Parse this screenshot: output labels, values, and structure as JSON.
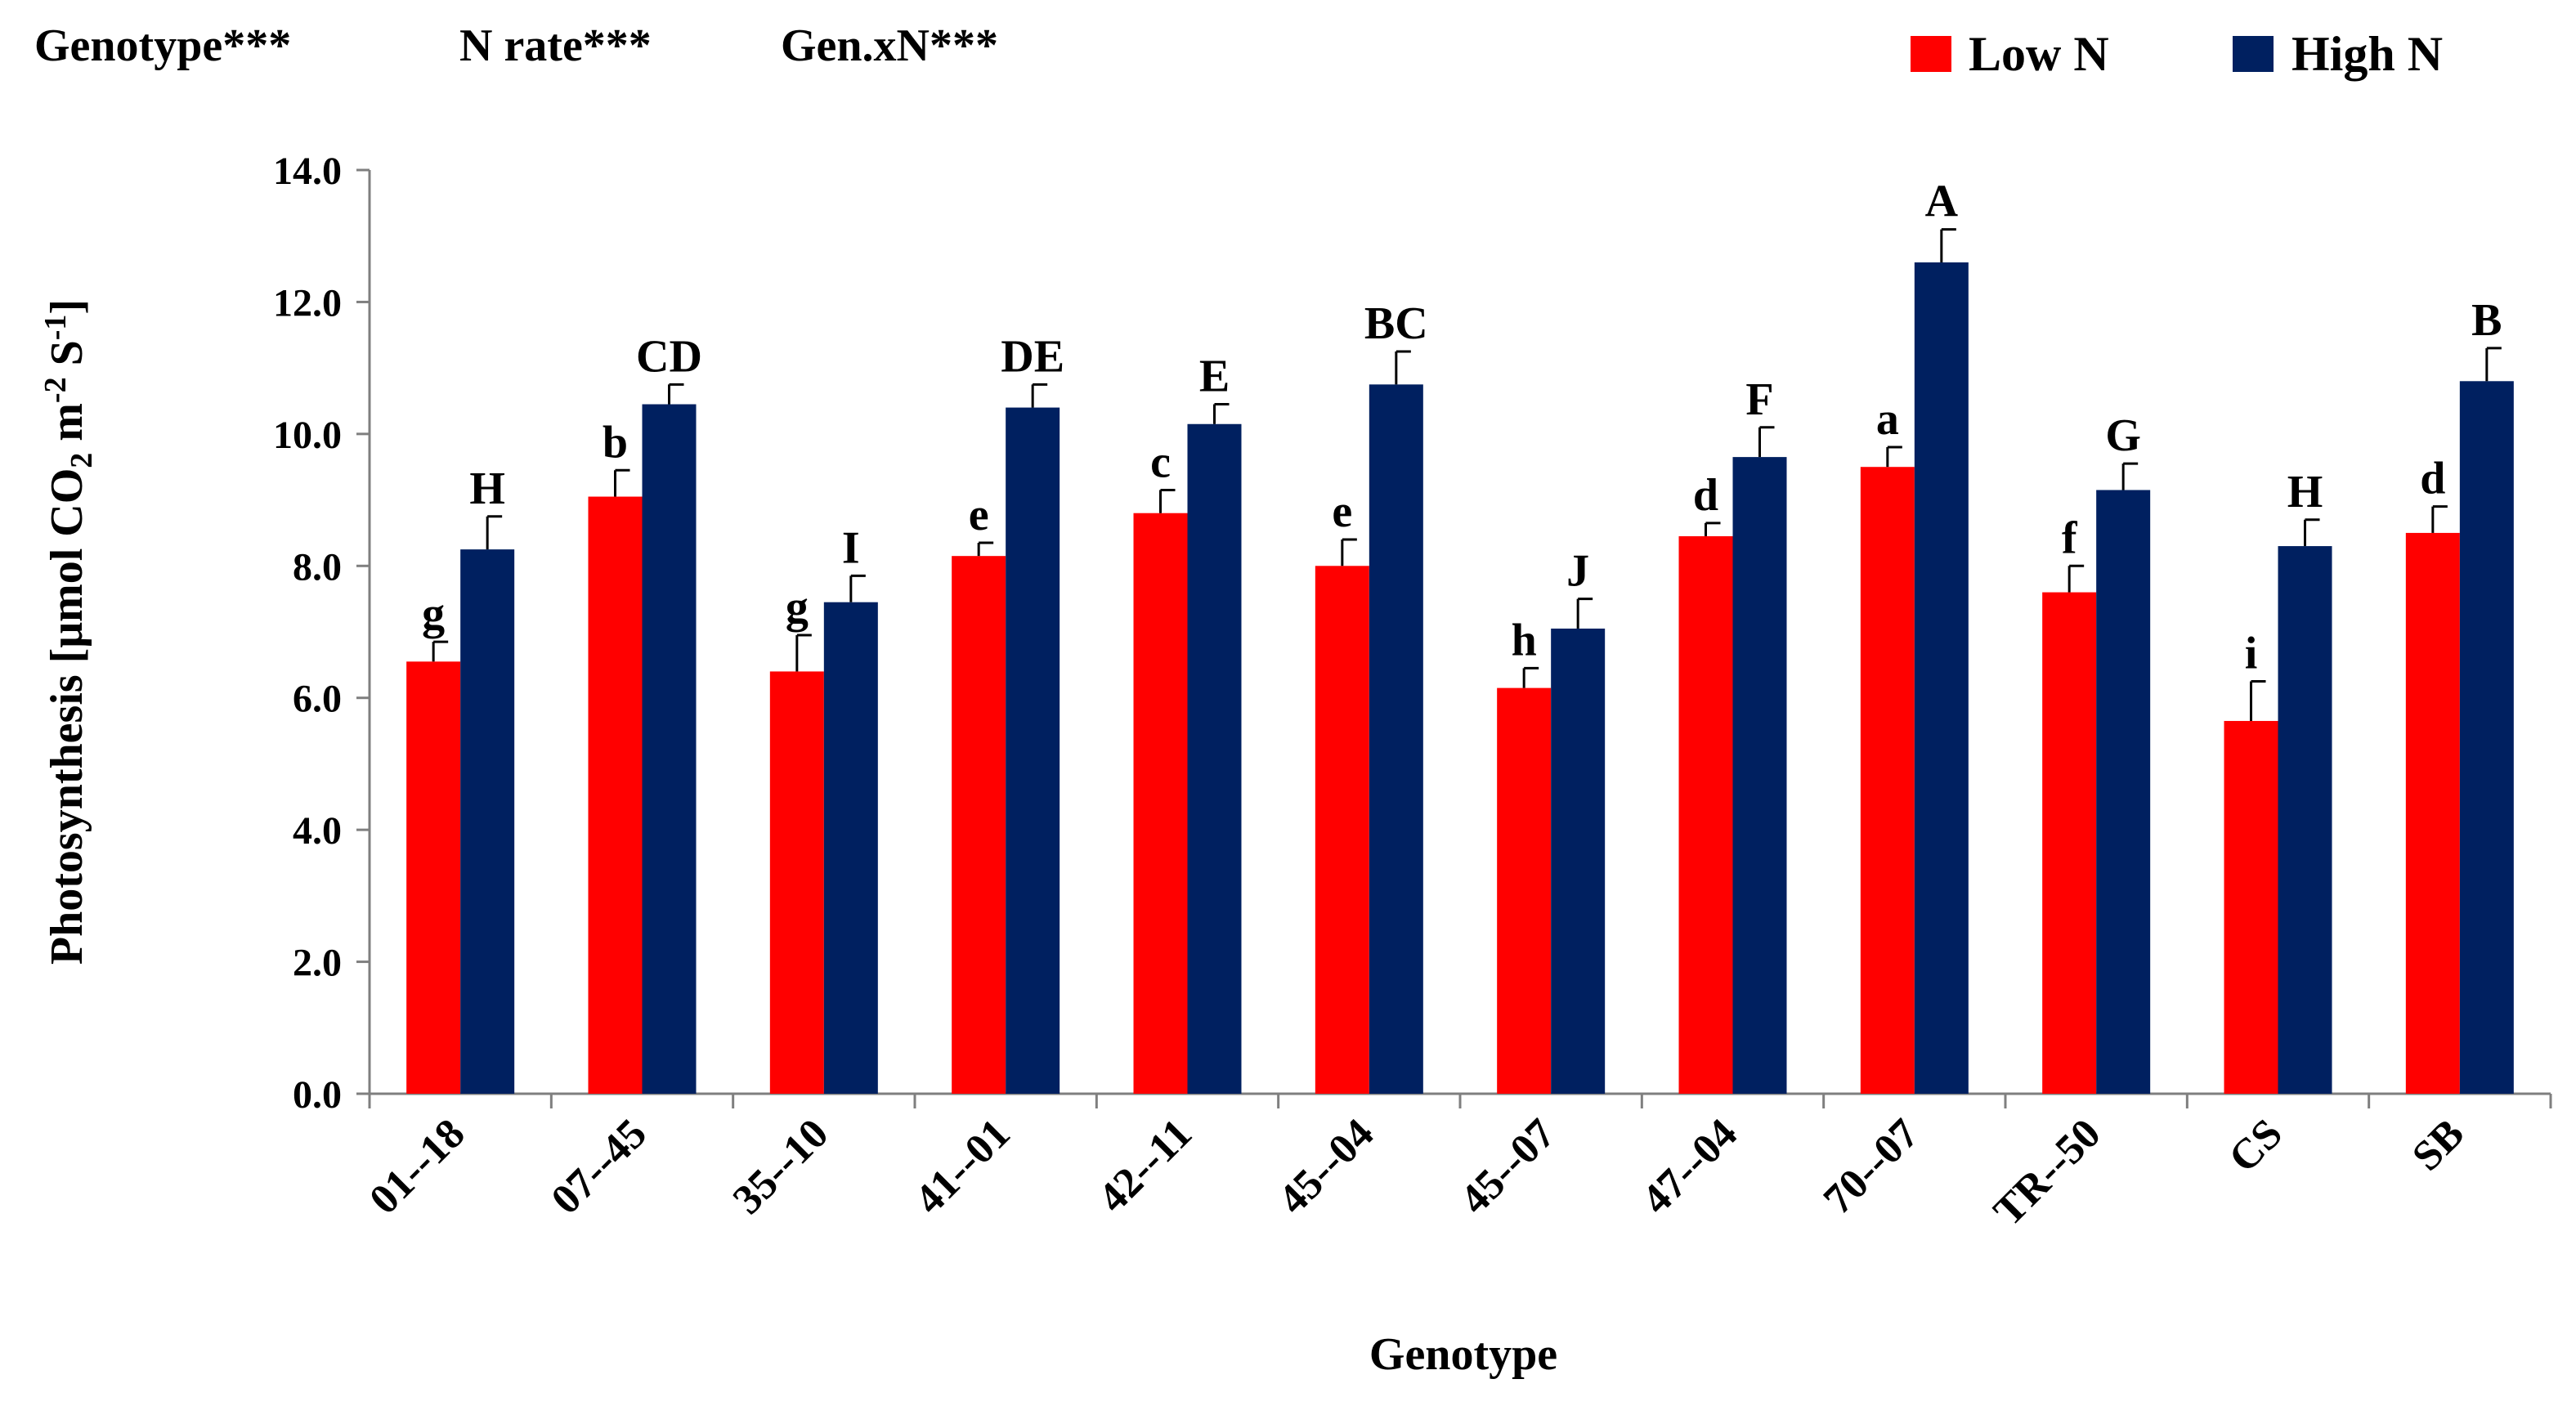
{
  "chart_data": {
    "type": "bar",
    "stats_labels": [
      "Genotype***",
      "N rate***",
      "Gen.xN***"
    ],
    "categories": [
      "01--18",
      "07--45",
      "35--10",
      "41--01",
      "42--11",
      "45--04",
      "45--07",
      "47--04",
      "70--07",
      "TR--50",
      "CS",
      "SB"
    ],
    "series": [
      {
        "name": "Low N",
        "color": "#ff0000",
        "values": [
          6.55,
          9.05,
          6.4,
          8.15,
          8.8,
          8.0,
          6.15,
          8.45,
          9.5,
          7.6,
          5.65,
          8.5
        ],
        "errors": [
          0.3,
          0.4,
          0.55,
          0.2,
          0.35,
          0.4,
          0.3,
          0.2,
          0.3,
          0.4,
          0.6,
          0.4
        ],
        "sig_letters": [
          "g",
          "b",
          "g",
          "e",
          "c",
          "e",
          "h",
          "d",
          "a",
          "f",
          "i",
          "d"
        ]
      },
      {
        "name": "High N",
        "color": "#002060",
        "values": [
          8.25,
          10.45,
          7.45,
          10.4,
          10.15,
          10.75,
          7.05,
          9.65,
          12.6,
          9.15,
          8.3,
          10.8
        ],
        "errors": [
          0.5,
          0.3,
          0.4,
          0.35,
          0.3,
          0.5,
          0.45,
          0.45,
          0.5,
          0.4,
          0.4,
          0.5
        ],
        "sig_letters": [
          "H",
          "CD",
          "I",
          "DE",
          "E",
          "BC",
          "J",
          "F",
          "A",
          "G",
          "H",
          "B"
        ]
      }
    ],
    "xlabel": "Genotype",
    "ylabel_parts": [
      "Photosynthesis  [μmol CO",
      "2",
      " m",
      "-2",
      " S",
      "-1",
      "]"
    ],
    "ylim": [
      0,
      14
    ],
    "yticks": [
      "0.0",
      "2.0",
      "4.0",
      "6.0",
      "8.0",
      "10.0",
      "12.0",
      "14.0"
    ],
    "legend_position": "top-right"
  }
}
